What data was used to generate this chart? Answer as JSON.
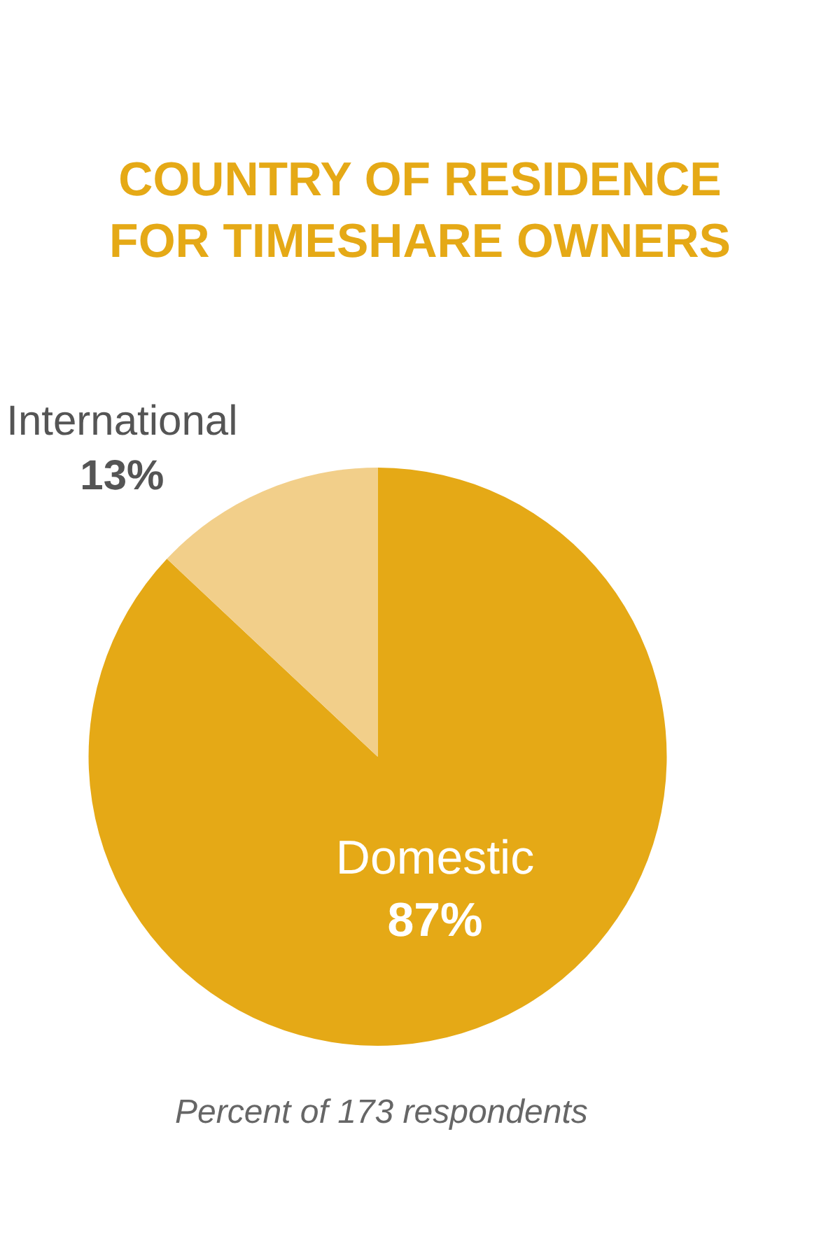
{
  "chart_data": {
    "type": "pie",
    "title": "COUNTRY OF RESIDENCE\nFOR TIMESHARE OWNERS",
    "categories": [
      "Domestic",
      "International"
    ],
    "values": [
      87,
      13
    ],
    "value_labels": [
      "87%",
      "13%"
    ],
    "colors": [
      "#e5a916",
      "#f2cf8a"
    ],
    "annotations": [
      "Percent of 173 respondents"
    ],
    "legend": false
  }
}
